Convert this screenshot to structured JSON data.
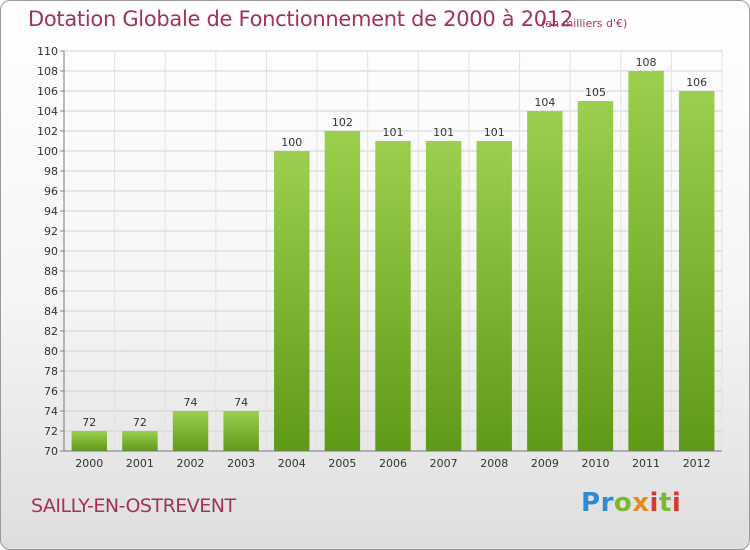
{
  "header": {
    "title": "Dotation Globale de Fonctionnement de 2000 à 2012",
    "unit": "(en milliers d'€)"
  },
  "footer": {
    "city": "SAILLY-EN-OSTREVENT",
    "logo": {
      "name": "Proxiti",
      "colors": [
        "#2e8bd8",
        "#e68a1c",
        "#7cb82f",
        "#d8382e"
      ]
    }
  },
  "chart_data": {
    "type": "bar",
    "title": "Dotation Globale de Fonctionnement de 2000 à 2012",
    "subtitle": "(en milliers d'€)",
    "xlabel": "",
    "ylabel": "",
    "categories": [
      "2000",
      "2001",
      "2002",
      "2003",
      "2004",
      "2005",
      "2006",
      "2007",
      "2008",
      "2009",
      "2010",
      "2011",
      "2012"
    ],
    "values": [
      72,
      72,
      74,
      74,
      100,
      102,
      101,
      101,
      101,
      104,
      105,
      108,
      106
    ],
    "ylim": [
      70,
      110
    ],
    "yticks": [
      70,
      72,
      74,
      76,
      78,
      80,
      82,
      84,
      86,
      88,
      90,
      92,
      94,
      96,
      98,
      100,
      102,
      104,
      106,
      108,
      110
    ],
    "grid": true,
    "legend": "none",
    "bar_color_top": "#9ccf4e",
    "bar_color_bottom": "#5f9a17"
  }
}
